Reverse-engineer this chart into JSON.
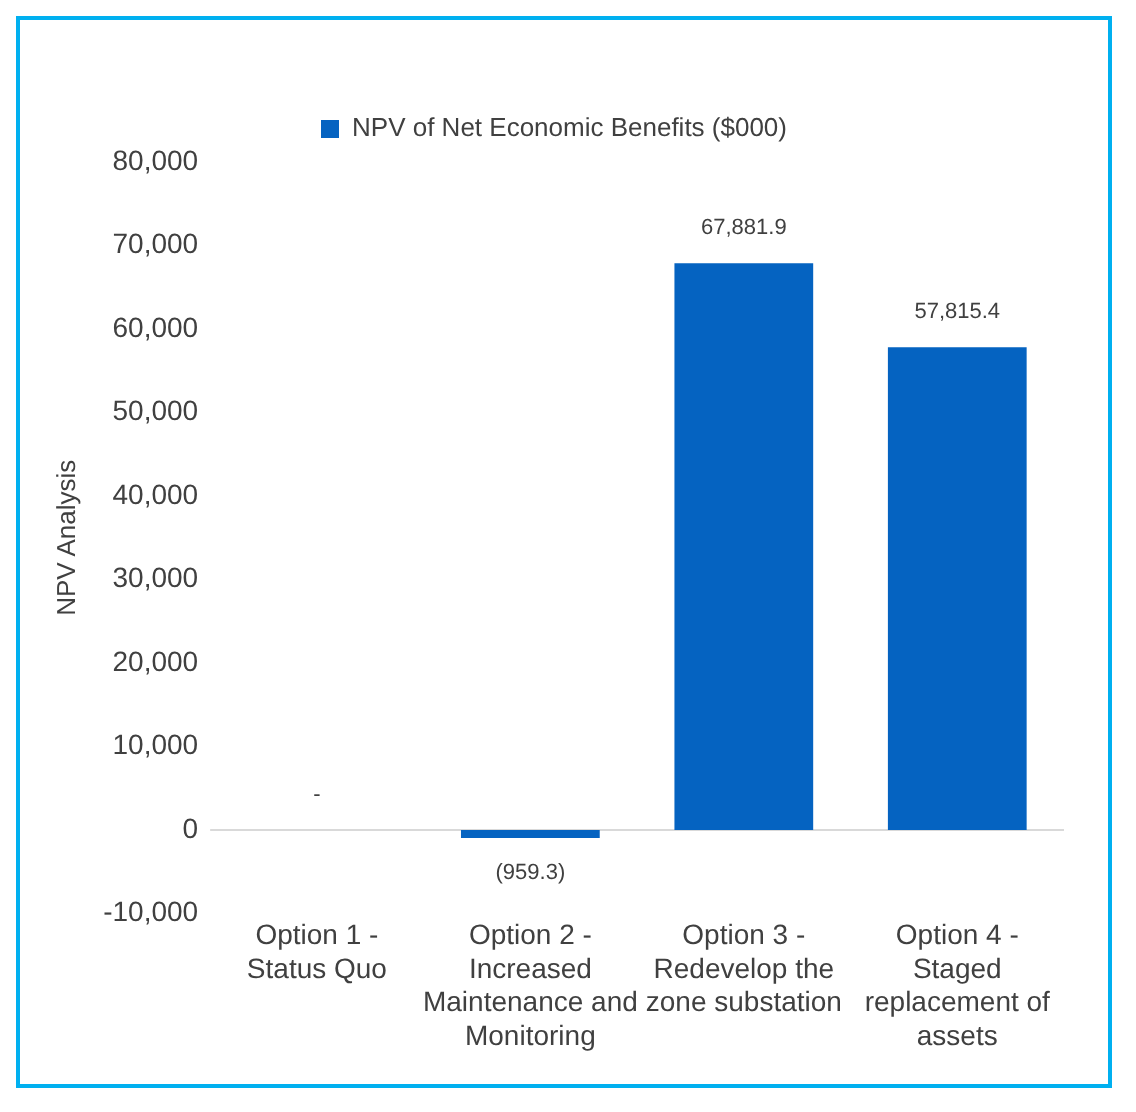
{
  "chart_data": {
    "type": "bar",
    "ylabel": "NPV Analysis",
    "categories": [
      "Option 1 - Status Quo",
      "Option 2 - Increased Maintenance and Monitoring",
      "Option 3 - Redevelop the zone substation",
      "Option 4 - Staged replacement of assets"
    ],
    "series": [
      {
        "name": "NPV of Net Economic Benefits ($000)",
        "color": "#0563c1",
        "values": [
          0,
          -959.3,
          67881.9,
          57815.4
        ],
        "value_labels": [
          "-",
          "(959.3)",
          "67,881.9",
          "57,815.4"
        ]
      }
    ],
    "ylim": [
      -10000,
      80000
    ],
    "yticks": [
      {
        "value": -10000,
        "label": "-10,000"
      },
      {
        "value": 0,
        "label": "0"
      },
      {
        "value": 10000,
        "label": "10,000"
      },
      {
        "value": 20000,
        "label": "20,000"
      },
      {
        "value": 30000,
        "label": "30,000"
      },
      {
        "value": 40000,
        "label": "40,000"
      },
      {
        "value": 50000,
        "label": "50,000"
      },
      {
        "value": 60000,
        "label": "60,000"
      },
      {
        "value": 70000,
        "label": "70,000"
      },
      {
        "value": 80000,
        "label": "80,000"
      }
    ],
    "grid": false,
    "legend": "top",
    "ref_lines": [
      {
        "axis": "y",
        "value": 0,
        "color": "#d9d9d9"
      }
    ]
  }
}
